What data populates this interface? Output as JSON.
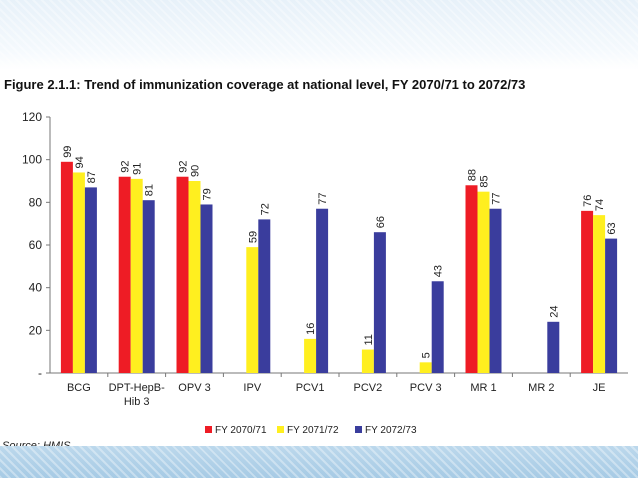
{
  "figure": {
    "title": "Figure 2.1.1: Trend of immunization coverage at national level, FY 2070/71 to 2072/73",
    "source": "Source: HMIS"
  },
  "chart_data": {
    "type": "bar",
    "categories": [
      [
        "BCG"
      ],
      [
        "DPT-HepB-",
        "Hib 3"
      ],
      [
        "OPV 3"
      ],
      [
        "IPV"
      ],
      [
        "PCV1"
      ],
      [
        "PCV2"
      ],
      [
        "PCV 3"
      ],
      [
        "MR 1"
      ],
      [
        "MR 2"
      ],
      [
        "JE"
      ]
    ],
    "series": [
      {
        "name": "FY 2070/71",
        "color": "#ee1c25",
        "values": [
          99,
          92,
          92,
          null,
          null,
          null,
          null,
          88,
          null,
          76
        ]
      },
      {
        "name": "FY 2071/72",
        "color": "#ffef1f",
        "values": [
          94,
          91,
          90,
          59,
          16,
          11,
          5,
          85,
          null,
          74
        ]
      },
      {
        "name": "FY 2072/73",
        "color": "#3a3d9d",
        "values": [
          87,
          81,
          79,
          72,
          77,
          66,
          43,
          77,
          24,
          63
        ]
      }
    ],
    "ylim": [
      0,
      120
    ],
    "yticks": [
      0,
      20,
      40,
      60,
      80,
      100,
      120
    ],
    "ytick_labels": [
      "-",
      "20",
      "40",
      "60",
      "80",
      "100",
      "120"
    ],
    "grid": false,
    "legend_position": "bottom-center",
    "data_labels": "vertical"
  }
}
